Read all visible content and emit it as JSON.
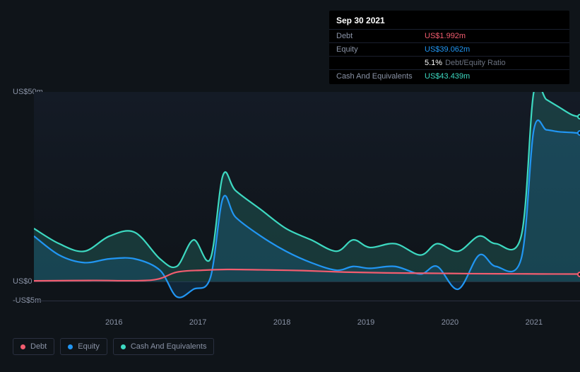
{
  "tooltip": {
    "date": "Sep 30 2021",
    "rows": [
      {
        "label": "Debt",
        "value": "US$1.992m",
        "color": "#f25d6f"
      },
      {
        "label": "Equity",
        "value": "US$39.062m",
        "color": "#2196f3"
      },
      {
        "label": "",
        "value": "5.1%",
        "sub": "Debt/Equity Ratio",
        "color": "#ffffff"
      },
      {
        "label": "Cash And Equivalents",
        "value": "US$43.439m",
        "color": "#3dd9c1"
      }
    ]
  },
  "chart": {
    "bg_gradient_top": "#141b26",
    "bg_gradient_bottom": "#0f1419",
    "y_axis": {
      "min": -5,
      "max": 50,
      "ticks": [
        {
          "value": 50,
          "label": "US$50m"
        },
        {
          "value": 0,
          "label": "US$0"
        },
        {
          "value": -5,
          "label": "-US$5m"
        }
      ],
      "gridlines": [
        50,
        0,
        -5
      ]
    },
    "x_axis": {
      "min": 2015.3,
      "max": 2021.8,
      "ticks": [
        2016,
        2017,
        2018,
        2019,
        2020,
        2021
      ]
    },
    "series": [
      {
        "name": "Cash And Equivalents",
        "type": "area",
        "color": "#3dd9c1",
        "fill_opacity": 0.18,
        "line_width": 2.2,
        "points": [
          [
            2015.3,
            14
          ],
          [
            2015.6,
            10
          ],
          [
            2015.9,
            8
          ],
          [
            2016.2,
            12
          ],
          [
            2016.5,
            13
          ],
          [
            2016.8,
            6
          ],
          [
            2017.0,
            4
          ],
          [
            2017.2,
            11
          ],
          [
            2017.4,
            6
          ],
          [
            2017.55,
            28
          ],
          [
            2017.7,
            24
          ],
          [
            2018.0,
            19
          ],
          [
            2018.3,
            14
          ],
          [
            2018.6,
            11
          ],
          [
            2018.9,
            8
          ],
          [
            2019.1,
            11
          ],
          [
            2019.3,
            9
          ],
          [
            2019.6,
            10
          ],
          [
            2019.9,
            7
          ],
          [
            2020.1,
            10
          ],
          [
            2020.35,
            8
          ],
          [
            2020.6,
            12
          ],
          [
            2020.8,
            10
          ],
          [
            2021.1,
            12
          ],
          [
            2021.25,
            50
          ],
          [
            2021.4,
            48
          ],
          [
            2021.55,
            46
          ],
          [
            2021.7,
            44
          ],
          [
            2021.8,
            43.4
          ]
        ]
      },
      {
        "name": "Equity",
        "type": "area",
        "color": "#2196f3",
        "fill_opacity": 0.14,
        "line_width": 2.2,
        "points": [
          [
            2015.3,
            12
          ],
          [
            2015.6,
            7
          ],
          [
            2015.9,
            5
          ],
          [
            2016.2,
            6
          ],
          [
            2016.5,
            6
          ],
          [
            2016.8,
            3
          ],
          [
            2017.0,
            -4
          ],
          [
            2017.2,
            -2
          ],
          [
            2017.4,
            1
          ],
          [
            2017.55,
            22
          ],
          [
            2017.7,
            17
          ],
          [
            2018.0,
            12
          ],
          [
            2018.3,
            8
          ],
          [
            2018.6,
            5
          ],
          [
            2018.9,
            3
          ],
          [
            2019.1,
            4
          ],
          [
            2019.3,
            3.5
          ],
          [
            2019.6,
            4
          ],
          [
            2019.9,
            2
          ],
          [
            2020.1,
            4
          ],
          [
            2020.35,
            -2
          ],
          [
            2020.6,
            7
          ],
          [
            2020.8,
            4
          ],
          [
            2021.1,
            6
          ],
          [
            2021.25,
            40
          ],
          [
            2021.4,
            40
          ],
          [
            2021.55,
            39.5
          ],
          [
            2021.7,
            39.3
          ],
          [
            2021.8,
            39.1
          ]
        ]
      },
      {
        "name": "Debt",
        "type": "line",
        "color": "#f25d6f",
        "line_width": 2.2,
        "points": [
          [
            2015.3,
            0.2
          ],
          [
            2016.0,
            0.3
          ],
          [
            2016.7,
            0.4
          ],
          [
            2017.0,
            2.5
          ],
          [
            2017.3,
            3
          ],
          [
            2017.6,
            3.2
          ],
          [
            2018.0,
            3.1
          ],
          [
            2018.5,
            2.9
          ],
          [
            2019.0,
            2.5
          ],
          [
            2019.5,
            2.3
          ],
          [
            2020.0,
            2.2
          ],
          [
            2020.5,
            2.1
          ],
          [
            2021.0,
            2.05
          ],
          [
            2021.5,
            2.0
          ],
          [
            2021.8,
            1.99
          ]
        ]
      }
    ],
    "markers": [
      {
        "series": "Cash And Equivalents",
        "x": 2021.8,
        "y": 43.4,
        "color": "#3dd9c1"
      },
      {
        "series": "Equity",
        "x": 2021.8,
        "y": 39.1,
        "color": "#2196f3"
      },
      {
        "series": "Debt",
        "x": 2021.8,
        "y": 1.99,
        "color": "#f25d6f"
      }
    ]
  },
  "legend": [
    {
      "label": "Debt",
      "color": "#f25d6f"
    },
    {
      "label": "Equity",
      "color": "#2196f3"
    },
    {
      "label": "Cash And Equivalents",
      "color": "#3dd9c1"
    }
  ]
}
